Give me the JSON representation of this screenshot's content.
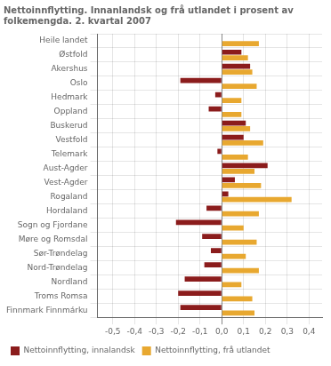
{
  "chart_data": {
    "type": "bar",
    "orientation": "horizontal",
    "title": [
      "Nettoinnflytting. Innanlandsk og frå utlandet i prosent av",
      "folkemengda. 2. kvartal 2007"
    ],
    "categories": [
      "Heile landet",
      "Østfold",
      "Akershus",
      "Oslo",
      "Hedmark",
      "Oppland",
      "Buskerud",
      "Vestfold",
      "Telemark",
      "Aust-Agder",
      "Vest-Agder",
      "Rogaland",
      "Hordaland",
      "Sogn og Fjordane",
      "Møre og Romsdal",
      "Sør-Trøndelag",
      "Nord-Trøndelag",
      "Nordland",
      "Troms Romsa",
      "Finnmark Finnmárku"
    ],
    "series": [
      {
        "name": "Nettoinnflytting, innalandsk",
        "color": "#8B1C1C",
        "values": [
          0.0,
          0.09,
          0.13,
          -0.19,
          -0.03,
          -0.06,
          0.11,
          0.1,
          -0.02,
          0.21,
          0.06,
          0.03,
          -0.07,
          -0.21,
          -0.09,
          -0.05,
          -0.08,
          -0.17,
          -0.2,
          -0.19
        ]
      },
      {
        "name": "Nettoinnflytting, frå utlandet",
        "color": "#E8A830",
        "values": [
          0.17,
          0.12,
          0.14,
          0.16,
          0.09,
          0.09,
          0.13,
          0.19,
          0.12,
          0.15,
          0.18,
          0.32,
          0.17,
          0.1,
          0.16,
          0.11,
          0.17,
          0.09,
          0.14,
          0.15
        ]
      }
    ],
    "xlim": [
      -0.57,
      0.46
    ],
    "xticks": [
      {
        "value": -0.5,
        "label": "-0,5"
      },
      {
        "value": -0.4,
        "label": "-0,4"
      },
      {
        "value": -0.3,
        "label": "-0,3"
      },
      {
        "value": -0.2,
        "label": "-0,2"
      },
      {
        "value": -0.1,
        "label": "-0,1"
      },
      {
        "value": 0.0,
        "label": "0,0"
      },
      {
        "value": 0.1,
        "label": "0,1"
      },
      {
        "value": 0.2,
        "label": "0,2"
      },
      {
        "value": 0.3,
        "label": "0,3"
      },
      {
        "value": 0.4,
        "label": "0,4"
      }
    ],
    "grid": true,
    "legend": "lower left"
  }
}
